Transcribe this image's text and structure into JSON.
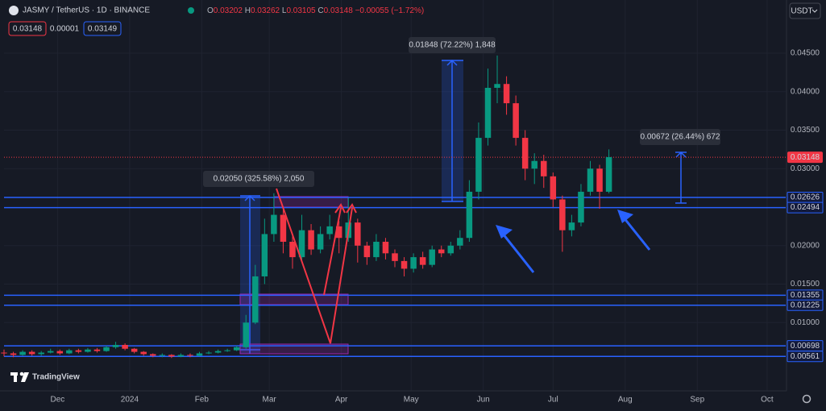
{
  "header": {
    "symbol": "JASMY / TetherUS · 1D · BINANCE",
    "open_label": "O",
    "open": "0.03202",
    "high_label": "H",
    "high": "0.03262",
    "low_label": "L",
    "low": "0.03105",
    "close_label": "C",
    "close": "0.03148",
    "change": "−0.00055 (−1.72%)",
    "bid": "0.03148",
    "spread": "0.00001",
    "ask": "0.03149",
    "currency": "USDT",
    "brand": "TradingView"
  },
  "chart_data": {
    "type": "candlestick",
    "x": [
      0,
      4,
      8,
      12,
      16,
      20,
      24,
      28,
      32,
      36,
      40,
      44,
      48,
      52,
      56,
      60,
      64,
      68,
      72,
      76,
      80,
      84,
      88,
      92,
      96,
      100,
      104,
      108,
      112,
      116,
      120,
      124,
      128,
      132,
      136,
      140,
      144,
      148,
      152,
      156,
      160,
      164,
      168,
      172,
      176,
      180,
      184,
      188,
      192,
      196,
      200,
      204,
      208,
      212,
      216,
      220,
      224,
      228,
      232,
      236,
      240,
      244,
      248,
      252,
      256,
      260
    ],
    "open": [
      0.0061,
      0.006,
      0.0058,
      0.0062,
      0.0059,
      0.0061,
      0.0063,
      0.006,
      0.0064,
      0.0062,
      0.0065,
      0.0063,
      0.0068,
      0.0071,
      0.0066,
      0.0062,
      0.0059,
      0.0057,
      0.0058,
      0.0056,
      0.0058,
      0.0057,
      0.006,
      0.0061,
      0.0063,
      0.0064,
      0.0068,
      0.01,
      0.016,
      0.0215,
      0.024,
      0.0205,
      0.0185,
      0.022,
      0.0195,
      0.0215,
      0.0225,
      0.021,
      0.023,
      0.02,
      0.0185,
      0.0205,
      0.019,
      0.018,
      0.017,
      0.0185,
      0.0175,
      0.0195,
      0.019,
      0.02,
      0.021,
      0.027,
      0.034,
      0.0405,
      0.041,
      0.0385,
      0.034,
      0.03,
      0.031,
      0.029,
      0.026,
      0.022,
      0.023,
      0.027,
      0.03,
      0.027
    ],
    "high": [
      0.0065,
      0.0062,
      0.0064,
      0.0064,
      0.0063,
      0.0066,
      0.0065,
      0.0066,
      0.0066,
      0.0067,
      0.0067,
      0.007,
      0.0075,
      0.0073,
      0.0067,
      0.0063,
      0.006,
      0.006,
      0.0059,
      0.006,
      0.006,
      0.0062,
      0.0063,
      0.0065,
      0.0066,
      0.007,
      0.011,
      0.0175,
      0.0235,
      0.0268,
      0.025,
      0.0215,
      0.024,
      0.0228,
      0.0225,
      0.024,
      0.0232,
      0.0262,
      0.0235,
      0.0205,
      0.0215,
      0.021,
      0.0195,
      0.0185,
      0.019,
      0.0192,
      0.02,
      0.02,
      0.0205,
      0.022,
      0.0285,
      0.036,
      0.043,
      0.0447,
      0.042,
      0.0395,
      0.035,
      0.032,
      0.0318,
      0.0295,
      0.0265,
      0.024,
      0.028,
      0.031,
      0.0305,
      0.0325
    ],
    "low": [
      0.0056,
      0.0055,
      0.0057,
      0.0057,
      0.0057,
      0.006,
      0.0058,
      0.0059,
      0.006,
      0.0061,
      0.0061,
      0.0062,
      0.0066,
      0.0064,
      0.006,
      0.0057,
      0.0055,
      0.0055,
      0.0054,
      0.0055,
      0.0055,
      0.0056,
      0.0059,
      0.006,
      0.0062,
      0.0063,
      0.0066,
      0.0098,
      0.015,
      0.0205,
      0.019,
      0.017,
      0.018,
      0.0188,
      0.019,
      0.0208,
      0.019,
      0.0205,
      0.0178,
      0.0175,
      0.018,
      0.0182,
      0.0172,
      0.016,
      0.0165,
      0.017,
      0.0172,
      0.0185,
      0.0187,
      0.0195,
      0.0205,
      0.026,
      0.033,
      0.0385,
      0.037,
      0.033,
      0.0285,
      0.028,
      0.0275,
      0.025,
      0.0192,
      0.0212,
      0.0225,
      0.0265,
      0.0248,
      0.0268
    ],
    "close": [
      0.006,
      0.0058,
      0.0062,
      0.0059,
      0.0061,
      0.0063,
      0.006,
      0.0064,
      0.0062,
      0.0065,
      0.0063,
      0.0068,
      0.0071,
      0.0066,
      0.0062,
      0.0059,
      0.0057,
      0.0058,
      0.0056,
      0.0058,
      0.0057,
      0.006,
      0.0061,
      0.0063,
      0.0064,
      0.0068,
      0.01,
      0.016,
      0.0215,
      0.024,
      0.0205,
      0.0185,
      0.022,
      0.0195,
      0.0215,
      0.0225,
      0.021,
      0.023,
      0.02,
      0.0185,
      0.0205,
      0.019,
      0.018,
      0.017,
      0.0185,
      0.0175,
      0.0195,
      0.019,
      0.02,
      0.021,
      0.027,
      0.034,
      0.0405,
      0.041,
      0.0385,
      0.034,
      0.03,
      0.031,
      0.029,
      0.026,
      0.022,
      0.023,
      0.027,
      0.03,
      0.027,
      0.0315
    ],
    "up_color": "#089981",
    "down_color": "#f23645",
    "xlim": [
      0,
      336
    ],
    "xticks": [
      {
        "value": 23,
        "label": "Dec"
      },
      {
        "value": 54,
        "label": "2024"
      },
      {
        "value": 85,
        "label": "Feb"
      },
      {
        "value": 114,
        "label": "Mar"
      },
      {
        "value": 145,
        "label": "Apr"
      },
      {
        "value": 175,
        "label": "May"
      },
      {
        "value": 206,
        "label": "Jun"
      },
      {
        "value": 236,
        "label": "Jul"
      },
      {
        "value": 267,
        "label": "Aug"
      },
      {
        "value": 298,
        "label": "Sep"
      },
      {
        "value": 328,
        "label": "Oct"
      }
    ],
    "ylim": [
      0.00113,
      0.04877
    ],
    "yticks": [
      {
        "value": 0.045,
        "label": "0.04500"
      },
      {
        "value": 0.04,
        "label": "0.04000"
      },
      {
        "value": 0.035,
        "label": "0.03500"
      },
      {
        "value": 0.03,
        "label": "0.03000"
      },
      {
        "value": 0.02,
        "label": "0.02000"
      },
      {
        "value": 0.015,
        "label": "0.01500"
      },
      {
        "value": 0.01,
        "label": "0.01000"
      }
    ],
    "grid": true,
    "levels": [
      {
        "value": 0.02626,
        "label": "0.02626"
      },
      {
        "value": 0.02494,
        "label": "0.02494"
      },
      {
        "value": 0.01355,
        "label": "0.01355"
      },
      {
        "value": 0.01225,
        "label": "0.01225"
      },
      {
        "value": 0.00698,
        "label": "0.00698"
      },
      {
        "value": 0.00561,
        "label": "0.00561"
      }
    ],
    "level_color": "#2962ff",
    "last_price": {
      "value": 0.03148,
      "label": "0.03148"
    },
    "annotations": [
      "0.02050 (325.58%) 2,050",
      "0.01848 (72.22%) 1,848",
      "0.00672 (26.44%) 672"
    ]
  }
}
